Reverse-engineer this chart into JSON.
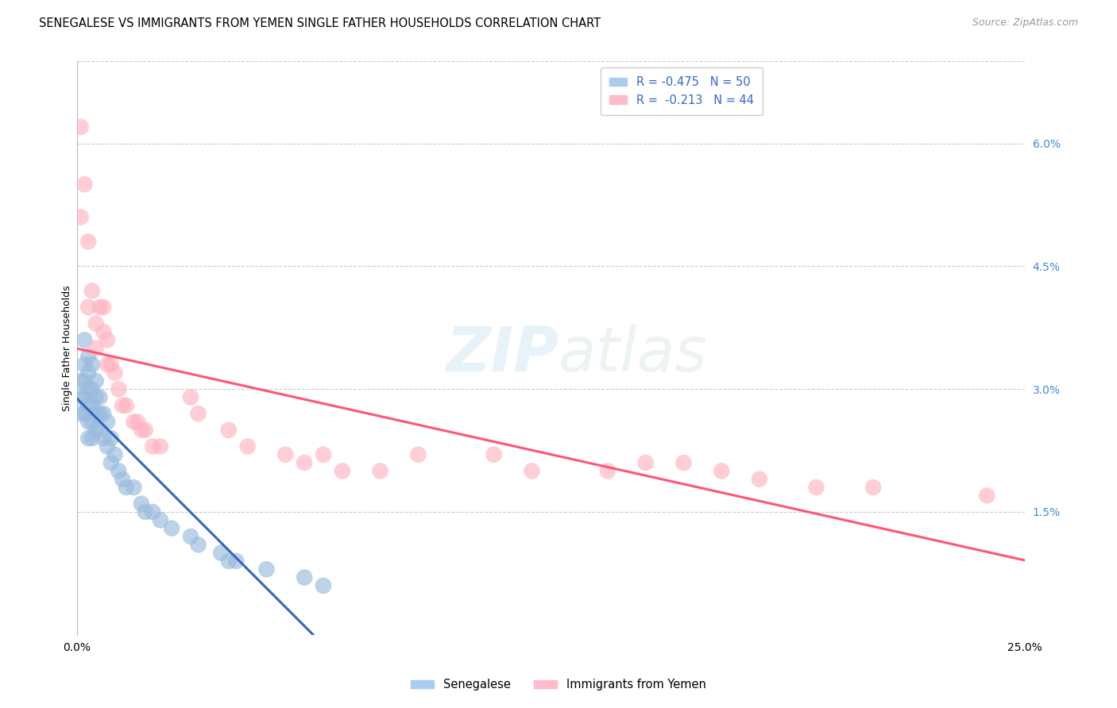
{
  "title": "SENEGALESE VS IMMIGRANTS FROM YEMEN SINGLE FATHER HOUSEHOLDS CORRELATION CHART",
  "source": "Source: ZipAtlas.com",
  "ylabel": "Single Father Households",
  "xlim": [
    0,
    0.25
  ],
  "ylim": [
    0,
    0.07
  ],
  "xticks": [
    0.0,
    0.05,
    0.1,
    0.15,
    0.2,
    0.25
  ],
  "xtick_labels": [
    "0.0%",
    "",
    "",
    "",
    "",
    "25.0%"
  ],
  "yticks_right": [
    0.015,
    0.03,
    0.045,
    0.06
  ],
  "ytick_right_labels": [
    "1.5%",
    "3.0%",
    "4.5%",
    "6.0%"
  ],
  "legend_blue_label": "R = -0.475   N = 50",
  "legend_pink_label": "R =  -0.213   N = 44",
  "legend_bottom_blue": "Senegalese",
  "legend_bottom_pink": "Immigrants from Yemen",
  "blue_color": "#99BBDD",
  "pink_color": "#FFB3C1",
  "line_blue": "#3366BB",
  "line_pink": "#FF5577",
  "blue_x": [
    0.001,
    0.001,
    0.001,
    0.002,
    0.002,
    0.002,
    0.002,
    0.002,
    0.003,
    0.003,
    0.003,
    0.003,
    0.003,
    0.003,
    0.004,
    0.004,
    0.004,
    0.004,
    0.004,
    0.005,
    0.005,
    0.005,
    0.005,
    0.006,
    0.006,
    0.006,
    0.007,
    0.007,
    0.008,
    0.008,
    0.009,
    0.009,
    0.01,
    0.011,
    0.012,
    0.013,
    0.015,
    0.017,
    0.018,
    0.02,
    0.022,
    0.025,
    0.03,
    0.032,
    0.038,
    0.04,
    0.042,
    0.05,
    0.06,
    0.065
  ],
  "blue_y": [
    0.031,
    0.029,
    0.027,
    0.036,
    0.033,
    0.031,
    0.029,
    0.027,
    0.034,
    0.032,
    0.03,
    0.028,
    0.026,
    0.024,
    0.033,
    0.03,
    0.028,
    0.026,
    0.024,
    0.031,
    0.029,
    0.027,
    0.025,
    0.029,
    0.027,
    0.025,
    0.027,
    0.024,
    0.026,
    0.023,
    0.024,
    0.021,
    0.022,
    0.02,
    0.019,
    0.018,
    0.018,
    0.016,
    0.015,
    0.015,
    0.014,
    0.013,
    0.012,
    0.011,
    0.01,
    0.009,
    0.009,
    0.008,
    0.007,
    0.006
  ],
  "pink_x": [
    0.001,
    0.001,
    0.002,
    0.003,
    0.003,
    0.004,
    0.005,
    0.005,
    0.006,
    0.007,
    0.007,
    0.008,
    0.008,
    0.009,
    0.01,
    0.011,
    0.012,
    0.013,
    0.015,
    0.016,
    0.017,
    0.018,
    0.02,
    0.022,
    0.03,
    0.032,
    0.04,
    0.045,
    0.055,
    0.06,
    0.065,
    0.07,
    0.08,
    0.09,
    0.11,
    0.12,
    0.14,
    0.15,
    0.16,
    0.17,
    0.18,
    0.195,
    0.21,
    0.24
  ],
  "pink_y": [
    0.062,
    0.051,
    0.055,
    0.048,
    0.04,
    0.042,
    0.038,
    0.035,
    0.04,
    0.04,
    0.037,
    0.036,
    0.033,
    0.033,
    0.032,
    0.03,
    0.028,
    0.028,
    0.026,
    0.026,
    0.025,
    0.025,
    0.023,
    0.023,
    0.029,
    0.027,
    0.025,
    0.023,
    0.022,
    0.021,
    0.022,
    0.02,
    0.02,
    0.022,
    0.022,
    0.02,
    0.02,
    0.021,
    0.021,
    0.02,
    0.019,
    0.018,
    0.018,
    0.017
  ],
  "background_color": "#ffffff",
  "grid_color": "#cccccc"
}
